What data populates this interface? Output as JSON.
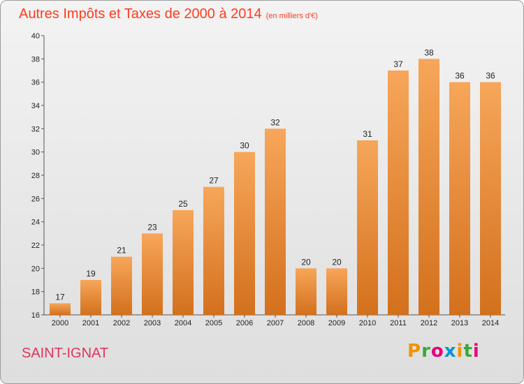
{
  "title": "Autres Impôts et Taxes de 2000 à 2014",
  "title_unit": "(en milliers d'€)",
  "commune": "SAINT-IGNAT",
  "logo": {
    "text": "Proxiti",
    "letters": [
      "P",
      "r",
      "o",
      "x",
      "i",
      "t",
      "i"
    ],
    "colors": [
      "#f39200",
      "#3aaa35",
      "#e6007e",
      "#0094d9",
      "#f39200",
      "#3aaa35",
      "#e6007e"
    ]
  },
  "colors": {
    "title": "#ff3b1f",
    "commune": "#e0355a",
    "bar_top": "#f7a65a",
    "bar_bottom": "#d3701c"
  },
  "chart_data": {
    "type": "bar",
    "title": "Autres Impôts et Taxes de 2000 à 2014",
    "subtitle": "(en milliers d'€)",
    "xlabel": "",
    "ylabel": "",
    "categories": [
      "2000",
      "2001",
      "2002",
      "2003",
      "2004",
      "2005",
      "2006",
      "2007",
      "2008",
      "2009",
      "2010",
      "2011",
      "2012",
      "2013",
      "2014"
    ],
    "values": [
      17,
      19,
      21,
      23,
      25,
      27,
      30,
      32,
      20,
      20,
      31,
      37,
      38,
      36,
      36
    ],
    "ylim": [
      16,
      40
    ],
    "yticks": [
      16,
      18,
      20,
      22,
      24,
      26,
      28,
      30,
      32,
      34,
      36,
      38,
      40
    ],
    "grid": false,
    "legend": "none"
  }
}
